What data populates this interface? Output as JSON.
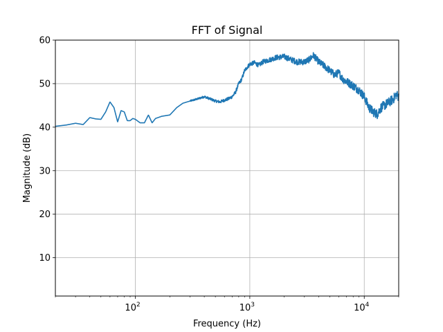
{
  "chart_data": {
    "type": "line",
    "title": "FFT of Signal",
    "xlabel": "Frequency (Hz)",
    "ylabel": "Magnitude (dB)",
    "xscale": "log",
    "xlim": [
      20,
      20000
    ],
    "ylim": [
      1.2,
      60
    ],
    "grid": true,
    "line_color": "#1f77b4",
    "y_ticks": [
      10,
      20,
      30,
      40,
      50,
      60
    ],
    "x_ticks": [
      {
        "value": 100,
        "base": "10",
        "exp": "2"
      },
      {
        "value": 1000,
        "base": "10",
        "exp": "3"
      },
      {
        "value": 10000,
        "base": "10",
        "exp": "4"
      }
    ],
    "series": [
      {
        "x": [
          20,
          25,
          30,
          35,
          40,
          45,
          50,
          55,
          60,
          65,
          70,
          75,
          80,
          85,
          90,
          95,
          100,
          110,
          120,
          130,
          140,
          150,
          170,
          200,
          230,
          260,
          300,
          350,
          400,
          450,
          500,
          550,
          600,
          650,
          700,
          750,
          800,
          850,
          900,
          1000,
          1100,
          1200,
          1300,
          1500,
          1700,
          2000,
          2300,
          2600,
          3000,
          3300,
          3600,
          4000,
          4500,
          5000,
          5500,
          6000,
          6500,
          7000,
          8000,
          9000,
          10000,
          11000,
          12000,
          13000,
          14000,
          15000,
          16000,
          17000,
          18000,
          19000,
          20000
        ],
        "y": [
          40.2,
          40.5,
          40.9,
          40.6,
          42.2,
          41.9,
          41.8,
          43.5,
          45.8,
          44.5,
          41.2,
          43.8,
          43.5,
          41.5,
          41.5,
          42.0,
          41.8,
          41.0,
          41.0,
          42.8,
          41.0,
          42.0,
          42.5,
          42.8,
          44.5,
          45.5,
          46.0,
          46.5,
          47.0,
          46.5,
          46.0,
          45.8,
          46.2,
          46.5,
          47.0,
          48.0,
          50.0,
          51.0,
          53.0,
          54.5,
          54.8,
          54.2,
          55.0,
          55.5,
          56.0,
          56.2,
          55.5,
          55.0,
          55.0,
          55.5,
          56.5,
          55.0,
          54.0,
          53.0,
          52.0,
          52.5,
          51.0,
          50.5,
          49.5,
          48.5,
          47.0,
          44.5,
          43.5,
          43.0,
          44.5,
          45.0,
          45.5,
          46.0,
          46.5,
          47.5,
          47.0
        ]
      }
    ]
  }
}
